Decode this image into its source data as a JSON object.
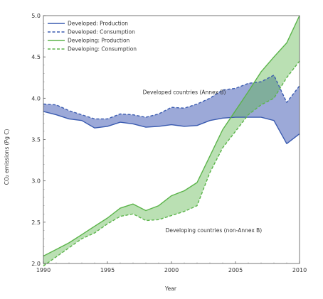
{
  "chart_data": {
    "type": "line",
    "title": "",
    "xlabel": "Year",
    "ylabel": "CO₂ emissions (Pg C)",
    "xlim": [
      1990,
      2010
    ],
    "ylim": [
      2.0,
      5.0
    ],
    "x_ticks": [
      1990,
      1995,
      2000,
      2005,
      2010
    ],
    "x_tick_labels": [
      "1990",
      "1995",
      "2000",
      "2005",
      "2010"
    ],
    "y_ticks": [
      2.0,
      2.5,
      3.0,
      3.5,
      4.0,
      4.5,
      5.0
    ],
    "y_tick_labels": [
      "2.0",
      "2.5",
      "3.0",
      "3.5",
      "4.0",
      "4.5",
      "5.0"
    ],
    "grid": false,
    "legend_position": "top-left",
    "x": [
      1990,
      1991,
      1992,
      1993,
      1994,
      1995,
      1996,
      1997,
      1998,
      1999,
      2000,
      2001,
      2002,
      2003,
      2004,
      2005,
      2006,
      2007,
      2008,
      2009,
      2010
    ],
    "series": [
      {
        "name": "Developed: Production",
        "color": "#3a5bb0",
        "dash": "solid",
        "values": [
          3.84,
          3.8,
          3.75,
          3.73,
          3.64,
          3.66,
          3.71,
          3.69,
          3.65,
          3.66,
          3.68,
          3.66,
          3.67,
          3.73,
          3.76,
          3.77,
          3.77,
          3.77,
          3.73,
          3.45,
          3.57
        ]
      },
      {
        "name": "Developed: Consumption",
        "color": "#3a5bb0",
        "dash": "dashed",
        "values": [
          3.93,
          3.92,
          3.85,
          3.8,
          3.75,
          3.75,
          3.81,
          3.8,
          3.77,
          3.81,
          3.89,
          3.88,
          3.93,
          4.0,
          4.1,
          4.12,
          4.18,
          4.2,
          4.28,
          3.95,
          4.15
        ]
      },
      {
        "name": "Developing: Production",
        "color": "#5bb44a",
        "dash": "solid",
        "values": [
          2.09,
          2.17,
          2.25,
          2.35,
          2.45,
          2.55,
          2.67,
          2.72,
          2.64,
          2.7,
          2.82,
          2.88,
          2.98,
          3.3,
          3.62,
          3.85,
          4.08,
          4.32,
          4.5,
          4.67,
          5.0
        ]
      },
      {
        "name": "Developing: Consumption",
        "color": "#5bb44a",
        "dash": "dashed",
        "values": [
          1.97,
          2.08,
          2.19,
          2.3,
          2.37,
          2.48,
          2.57,
          2.6,
          2.52,
          2.53,
          2.58,
          2.63,
          2.7,
          3.1,
          3.4,
          3.6,
          3.8,
          3.92,
          4.0,
          4.25,
          4.45
        ]
      }
    ],
    "bands": [
      {
        "between": [
          "Developed: Production",
          "Developed: Consumption"
        ],
        "color": "#4a63b8"
      },
      {
        "between": [
          "Developing: Production",
          "Developing: Consumption"
        ],
        "color": "#5bb44a"
      }
    ],
    "annotations": [
      {
        "text": "Developed countries (Annex B)",
        "x": 2001,
        "y": 4.05
      },
      {
        "text": "Developing countries (non-Annex B)",
        "x": 2003.3,
        "y": 2.38
      }
    ]
  }
}
